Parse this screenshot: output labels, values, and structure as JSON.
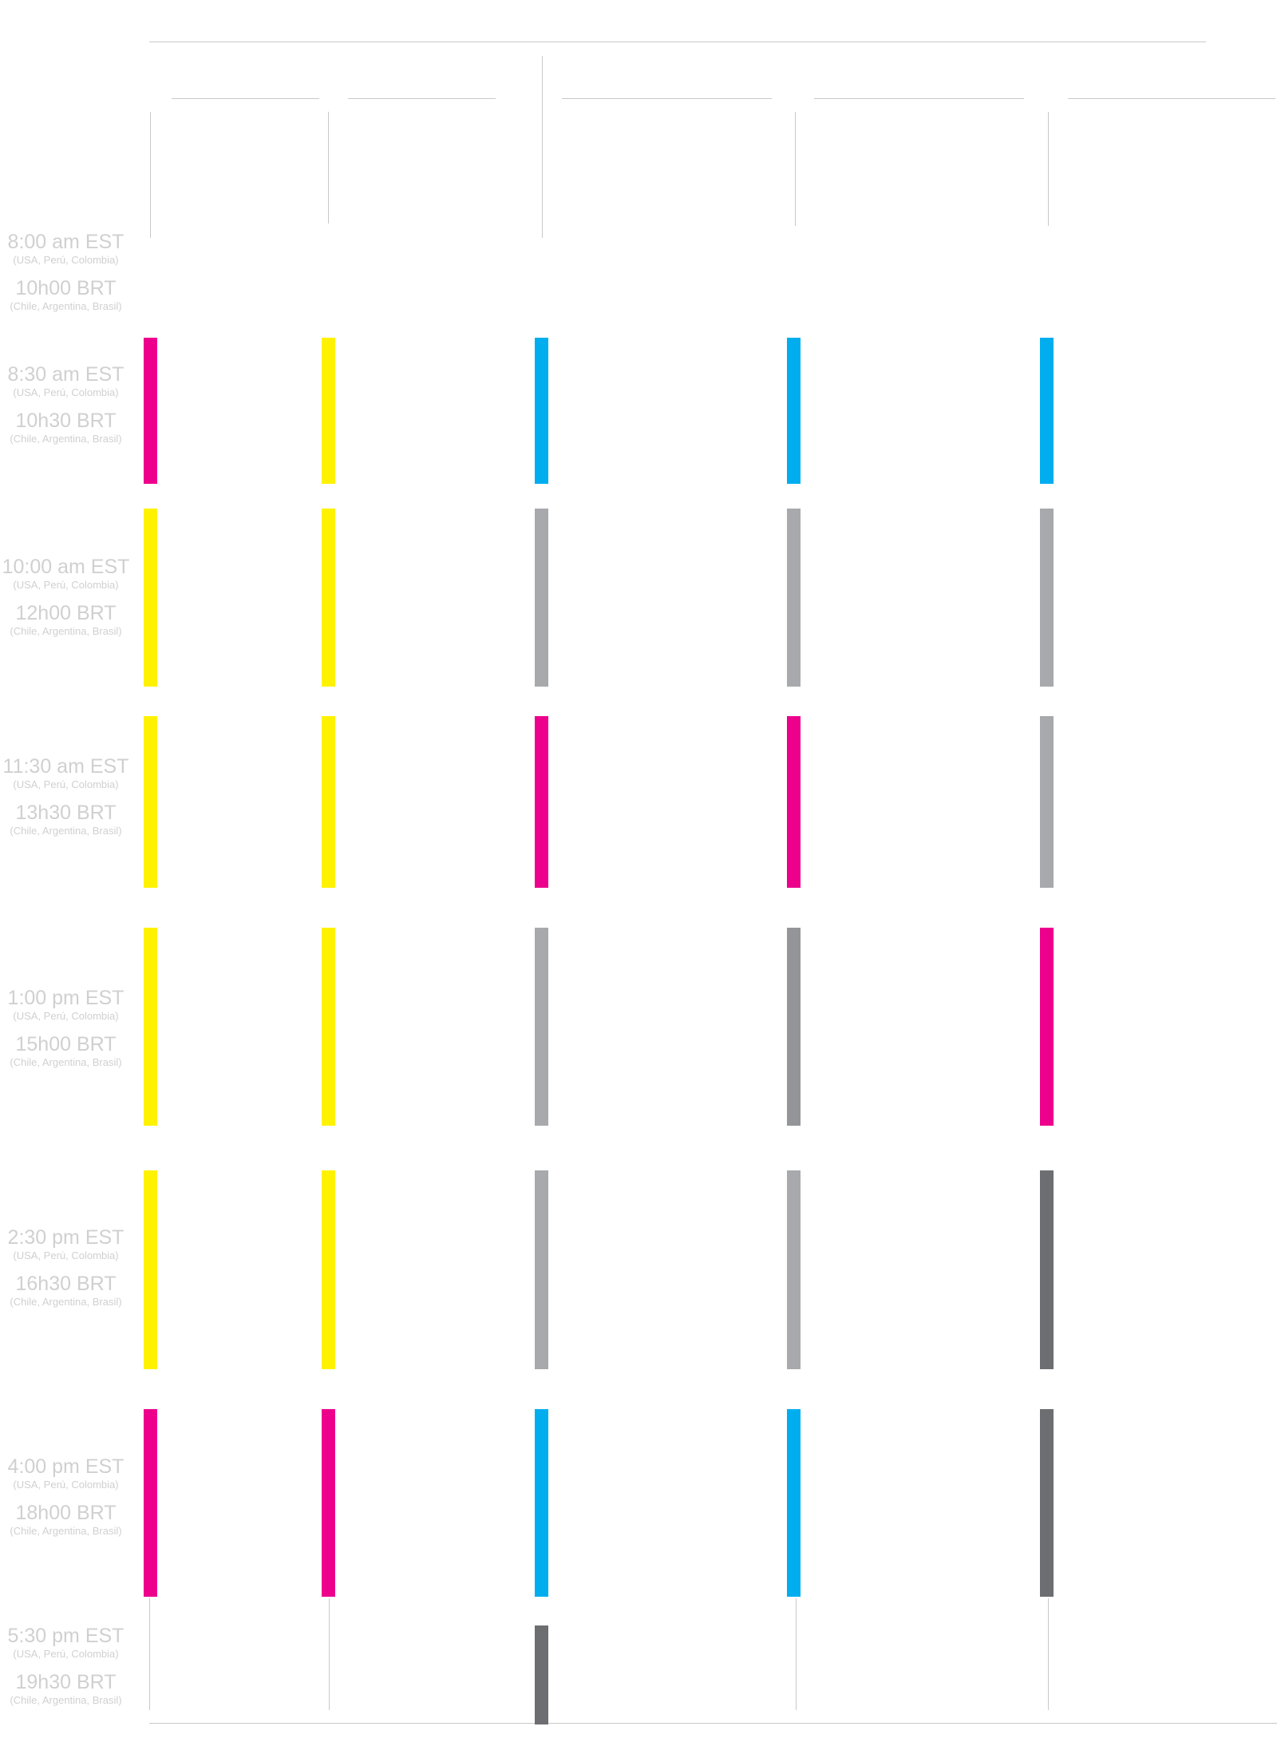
{
  "colors": {
    "magenta": "#ec008c",
    "yellow": "#fff200",
    "cyan": "#00aeef",
    "light_gray": "#a7a9ac",
    "mid_gray": "#939598",
    "dark_gray": "#6d6e71",
    "rule": "#c9c9c9",
    "label": "#d0d0d0"
  },
  "time_slots": [
    {
      "est": "8:00 am EST",
      "est_regions": "(USA, Perú, Colombia)",
      "brt": "10h00 BRT",
      "brt_regions": "(Chile, Argentina, Brasil)"
    },
    {
      "est": "8:30 am EST",
      "est_regions": "(USA, Perú, Colombia)",
      "brt": "10h30 BRT",
      "brt_regions": "(Chile, Argentina, Brasil)"
    },
    {
      "est": "10:00 am EST",
      "est_regions": "(USA, Perú, Colombia)",
      "brt": "12h00 BRT",
      "brt_regions": "(Chile, Argentina, Brasil)"
    },
    {
      "est": "11:30 am EST",
      "est_regions": "(USA, Perú, Colombia)",
      "brt": "13h30 BRT",
      "brt_regions": "(Chile, Argentina, Brasil)"
    },
    {
      "est": "1:00 pm EST",
      "est_regions": "(USA, Perú, Colombia)",
      "brt": "15h00 BRT",
      "brt_regions": "(Chile, Argentina, Brasil)"
    },
    {
      "est": "2:30 pm EST",
      "est_regions": "(USA, Perú, Colombia)",
      "brt": "16h30 BRT",
      "brt_regions": "(Chile, Argentina, Brasil)"
    },
    {
      "est": "4:00 pm EST",
      "est_regions": "(USA, Perú, Colombia)",
      "brt": "18h00 BRT",
      "brt_regions": "(Chile, Argentina, Brasil)"
    },
    {
      "est": "5:30 pm EST",
      "est_regions": "(USA, Perú, Colombia)",
      "brt": "19h30 BRT",
      "brt_regions": "(Chile, Argentina, Brasil)"
    }
  ],
  "tracks": [
    {
      "session_colors": [
        "magenta",
        "yellow",
        "yellow",
        "yellow",
        "yellow",
        "magenta"
      ],
      "after_hours": null
    },
    {
      "session_colors": [
        "yellow",
        "yellow",
        "yellow",
        "yellow",
        "yellow",
        "magenta"
      ],
      "after_hours": null
    },
    {
      "session_colors": [
        "cyan",
        "light_gray",
        "magenta",
        "light_gray",
        "light_gray",
        "cyan"
      ],
      "after_hours": "dark_gray"
    },
    {
      "session_colors": [
        "cyan",
        "light_gray",
        "magenta",
        "mid_gray",
        "light_gray",
        "cyan"
      ],
      "after_hours": null
    },
    {
      "session_colors": [
        "cyan",
        "light_gray",
        "light_gray",
        "magenta",
        "dark_gray",
        "dark_gray"
      ],
      "after_hours": null
    }
  ]
}
